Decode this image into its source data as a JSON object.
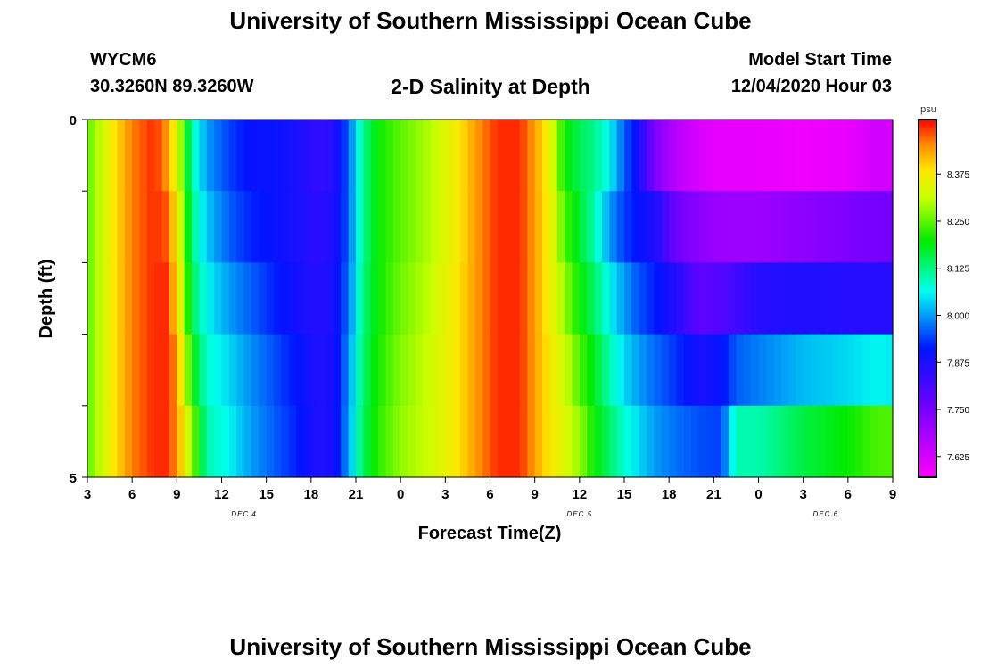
{
  "page": {
    "title_top": "University of Southern Mississippi Ocean Cube",
    "title_bottom": "University of Southern Mississippi Ocean Cube",
    "station": "WYCM6",
    "coords": "30.3260N 89.3260W",
    "plot_title": "2-D Salinity at Depth",
    "model_label": "Model Start Time",
    "model_time": "12/04/2020 Hour 03"
  },
  "chart_data": {
    "type": "heatmap",
    "title": "2-D Salinity at Depth",
    "xlabel": "Forecast Time(Z)",
    "ylabel": "Depth (ft)",
    "x_tick_labels": [
      "3",
      "6",
      "9",
      "12",
      "15",
      "18",
      "21",
      "0",
      "3",
      "6",
      "9",
      "12",
      "15",
      "18",
      "21",
      "0",
      "3",
      "6",
      "9"
    ],
    "x_tick_hours": [
      3,
      6,
      9,
      12,
      15,
      18,
      21,
      24,
      27,
      30,
      33,
      36,
      39,
      42,
      45,
      48,
      51,
      54,
      57
    ],
    "x_range_hours": [
      3,
      57
    ],
    "date_labels": [
      {
        "text": "DEC 4",
        "hour": 13.5
      },
      {
        "text": "DEC 5",
        "hour": 36
      },
      {
        "text": "DEC 6",
        "hour": 52.5
      }
    ],
    "y_tick_labels": [
      "0",
      "5"
    ],
    "ylim": [
      0,
      5
    ],
    "colorbar": {
      "unit": "psu",
      "tick_labels": [
        "8.375",
        "8.250",
        "8.125",
        "8.000",
        "7.875",
        "7.750",
        "7.625"
      ],
      "tick_values": [
        8.375,
        8.25,
        8.125,
        8.0,
        7.875,
        7.75,
        7.625
      ],
      "range": [
        7.57,
        8.52
      ]
    },
    "depth_layers": [
      0,
      1,
      2,
      3,
      4,
      5
    ],
    "time_keypoints": [
      {
        "hour": 3,
        "values": [
          8.25,
          8.25,
          8.25,
          8.25,
          8.25
        ]
      },
      {
        "hour": 4,
        "values": [
          8.32,
          8.32,
          8.32,
          8.32,
          8.32
        ]
      },
      {
        "hour": 5,
        "values": [
          8.4,
          8.4,
          8.4,
          8.4,
          8.4
        ]
      },
      {
        "hour": 6,
        "values": [
          8.46,
          8.46,
          8.46,
          8.46,
          8.46
        ]
      },
      {
        "hour": 7.5,
        "values": [
          8.5,
          8.5,
          8.5,
          8.5,
          8.5
        ]
      },
      {
        "hour": 8.3,
        "values": [
          8.45,
          8.48,
          8.5,
          8.5,
          8.5
        ]
      },
      {
        "hour": 9,
        "values": [
          8.35,
          8.38,
          8.4,
          8.45,
          8.45
        ]
      },
      {
        "hour": 10,
        "values": [
          8.1,
          8.12,
          8.15,
          8.2,
          8.28
        ]
      },
      {
        "hour": 11,
        "values": [
          8.0,
          8.03,
          8.06,
          8.08,
          8.1
        ]
      },
      {
        "hour": 12.5,
        "values": [
          7.94,
          7.96,
          8.0,
          8.04,
          8.06
        ]
      },
      {
        "hour": 14,
        "values": [
          7.9,
          7.92,
          7.96,
          7.99,
          8.0
        ]
      },
      {
        "hour": 15.5,
        "values": [
          7.9,
          7.9,
          7.92,
          7.95,
          7.96
        ]
      },
      {
        "hour": 17,
        "values": [
          7.88,
          7.88,
          7.89,
          7.91,
          7.92
        ]
      },
      {
        "hour": 18.5,
        "values": [
          7.84,
          7.85,
          7.86,
          7.87,
          7.87
        ]
      },
      {
        "hour": 19.5,
        "values": [
          7.86,
          7.87,
          7.88,
          7.88,
          7.88
        ]
      },
      {
        "hour": 20.5,
        "values": [
          7.96,
          7.96,
          7.97,
          7.99,
          8.0
        ]
      },
      {
        "hour": 21.5,
        "values": [
          8.12,
          8.12,
          8.13,
          8.14,
          8.15
        ]
      },
      {
        "hour": 22.5,
        "values": [
          8.2,
          8.2,
          8.2,
          8.21,
          8.22
        ]
      },
      {
        "hour": 24,
        "values": [
          8.25,
          8.25,
          8.26,
          8.27,
          8.28
        ]
      },
      {
        "hour": 26,
        "values": [
          8.3,
          8.3,
          8.31,
          8.32,
          8.32
        ]
      },
      {
        "hour": 27.5,
        "values": [
          8.36,
          8.36,
          8.37,
          8.37,
          8.37
        ]
      },
      {
        "hour": 29,
        "values": [
          8.44,
          8.44,
          8.44,
          8.44,
          8.44
        ]
      },
      {
        "hour": 30.5,
        "values": [
          8.5,
          8.5,
          8.5,
          8.5,
          8.5
        ]
      },
      {
        "hour": 32,
        "values": [
          8.5,
          8.5,
          8.5,
          8.5,
          8.5
        ]
      },
      {
        "hour": 33,
        "values": [
          8.44,
          8.44,
          8.44,
          8.44,
          8.44
        ]
      },
      {
        "hour": 34,
        "values": [
          8.36,
          8.37,
          8.37,
          8.38,
          8.38
        ]
      },
      {
        "hour": 35,
        "values": [
          8.2,
          8.24,
          8.28,
          8.32,
          8.34
        ]
      },
      {
        "hour": 36,
        "values": [
          8.15,
          8.17,
          8.2,
          8.24,
          8.28
        ]
      },
      {
        "hour": 37,
        "values": [
          8.12,
          8.1,
          8.14,
          8.18,
          8.2
        ]
      },
      {
        "hour": 38,
        "values": [
          8.06,
          8.0,
          8.06,
          8.1,
          8.14
        ]
      },
      {
        "hour": 39,
        "values": [
          7.96,
          7.94,
          8.0,
          8.04,
          8.08
        ]
      },
      {
        "hour": 40,
        "values": [
          7.88,
          7.9,
          7.95,
          8.0,
          8.04
        ]
      },
      {
        "hour": 41,
        "values": [
          7.74,
          7.88,
          7.92,
          7.97,
          8.0
        ]
      },
      {
        "hour": 42.5,
        "values": [
          7.66,
          7.76,
          7.86,
          7.93,
          7.97
        ]
      },
      {
        "hour": 44,
        "values": [
          7.62,
          7.72,
          7.78,
          7.88,
          7.95
        ]
      },
      {
        "hour": 45.5,
        "values": [
          7.6,
          7.7,
          7.8,
          7.9,
          7.94
        ]
      },
      {
        "hour": 46.5,
        "values": [
          7.6,
          7.7,
          7.82,
          7.96,
          8.1
        ]
      },
      {
        "hour": 48,
        "values": [
          7.6,
          7.7,
          7.86,
          7.98,
          8.1
        ]
      },
      {
        "hour": 51,
        "values": [
          7.59,
          7.72,
          7.87,
          8.02,
          8.16
        ]
      },
      {
        "hour": 54,
        "values": [
          7.6,
          7.74,
          7.86,
          8.04,
          8.2
        ]
      },
      {
        "hour": 56,
        "values": [
          7.63,
          7.75,
          7.86,
          8.06,
          8.24
        ]
      },
      {
        "hour": 57,
        "values": [
          7.63,
          7.75,
          7.86,
          8.05,
          8.24
        ]
      }
    ]
  }
}
